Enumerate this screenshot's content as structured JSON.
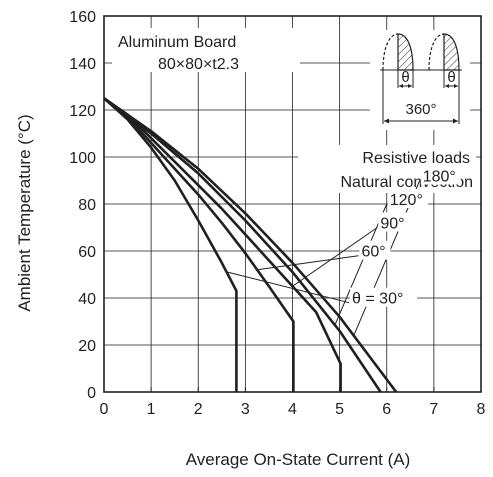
{
  "chart_data": {
    "type": "line",
    "xlabel": "Average On-State Current  (A)",
    "ylabel": "Ambient Temperature  (°C)",
    "xlim": [
      0,
      8
    ],
    "ylim": [
      0,
      160
    ],
    "x_ticks": [
      "0",
      "1",
      "2",
      "3",
      "4",
      "5",
      "6",
      "7",
      "8"
    ],
    "y_ticks": [
      "0",
      "20",
      "40",
      "60",
      "80",
      "100",
      "120",
      "140",
      "160"
    ],
    "grid": true,
    "annotations": {
      "board_line1": "Aluminum Board",
      "board_line2": "80×80×t2.3",
      "loads_line1": "Resistive loads",
      "loads_line2": "Natural convection",
      "theta1": "θ",
      "theta2": "θ",
      "period": "360°"
    },
    "series": [
      {
        "label": "θ = 30°",
        "x": [
          0,
          0.5,
          1.0,
          1.5,
          2.0,
          2.5,
          2.81,
          2.81
        ],
        "y": [
          125,
          116,
          104,
          90,
          73,
          55,
          43,
          0
        ]
      },
      {
        "label": "60°",
        "x": [
          0,
          0.5,
          1.0,
          1.5,
          2.0,
          2.5,
          3.0,
          3.5,
          4.02,
          4.02
        ],
        "y": [
          125,
          117,
          106,
          95,
          84,
          72,
          59,
          45,
          30,
          0
        ]
      },
      {
        "label": "90°",
        "x": [
          0,
          0.5,
          1.0,
          1.5,
          2.0,
          2.5,
          3.0,
          3.5,
          4.0,
          4.5,
          5.02,
          5.02
        ],
        "y": [
          125,
          118,
          108,
          98,
          88,
          78,
          67,
          56,
          45,
          34,
          12,
          0
        ]
      },
      {
        "label": "120°",
        "x": [
          0,
          1,
          2,
          3,
          4,
          5,
          5.87
        ],
        "y": [
          125,
          110,
          93,
          73,
          51,
          26,
          0
        ]
      },
      {
        "label": "180°",
        "x": [
          0,
          1,
          2,
          3,
          4,
          5,
          6.2
        ],
        "y": [
          125,
          111,
          95,
          76,
          55,
          32,
          0
        ]
      }
    ],
    "label_anchors": [
      {
        "x": 5.2,
        "y": 38
      },
      {
        "x": 5.4,
        "y": 58
      },
      {
        "x": 5.8,
        "y": 70
      },
      {
        "x": 6.0,
        "y": 80
      },
      {
        "x": 6.7,
        "y": 90
      }
    ]
  }
}
